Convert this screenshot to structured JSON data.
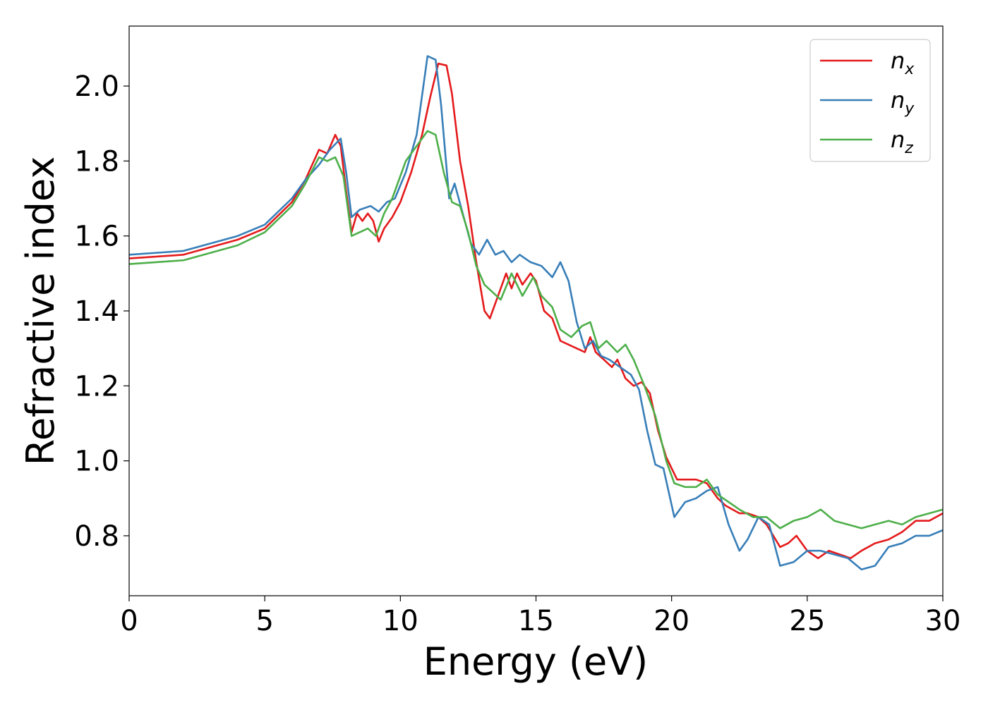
{
  "chart_data": {
    "type": "line",
    "title": "",
    "xlabel": "Energy (eV)",
    "ylabel": "Refractive index",
    "xlim": [
      0,
      30
    ],
    "ylim": [
      0.64,
      2.16
    ],
    "xticks": [
      0,
      5,
      10,
      15,
      20,
      25,
      30
    ],
    "xtick_labels": [
      "0",
      "5",
      "10",
      "15",
      "20",
      "25",
      "30"
    ],
    "yticks": [
      0.8,
      1.0,
      1.2,
      1.4,
      1.6,
      1.8,
      2.0
    ],
    "ytick_labels": [
      "0.8",
      "1.0",
      "1.2",
      "1.4",
      "1.6",
      "1.8",
      "2.0"
    ],
    "grid": false,
    "legend_position": "top-right",
    "series": [
      {
        "name": "n",
        "subscript": "x",
        "color": "#e41a1c",
        "points": [
          [
            0,
            1.54
          ],
          [
            2,
            1.55
          ],
          [
            4,
            1.59
          ],
          [
            5,
            1.62
          ],
          [
            6,
            1.69
          ],
          [
            6.5,
            1.75
          ],
          [
            7,
            1.83
          ],
          [
            7.3,
            1.82
          ],
          [
            7.6,
            1.87
          ],
          [
            7.8,
            1.84
          ],
          [
            8,
            1.72
          ],
          [
            8.2,
            1.61
          ],
          [
            8.4,
            1.66
          ],
          [
            8.6,
            1.64
          ],
          [
            8.8,
            1.66
          ],
          [
            9,
            1.64
          ],
          [
            9.2,
            1.585
          ],
          [
            9.4,
            1.62
          ],
          [
            9.7,
            1.65
          ],
          [
            10,
            1.69
          ],
          [
            10.4,
            1.77
          ],
          [
            10.8,
            1.87
          ],
          [
            11.1,
            1.97
          ],
          [
            11.4,
            2.06
          ],
          [
            11.7,
            2.055
          ],
          [
            11.9,
            1.98
          ],
          [
            12.2,
            1.8
          ],
          [
            12.5,
            1.68
          ],
          [
            12.8,
            1.53
          ],
          [
            13.1,
            1.4
          ],
          [
            13.3,
            1.38
          ],
          [
            13.6,
            1.44
          ],
          [
            13.9,
            1.5
          ],
          [
            14.1,
            1.46
          ],
          [
            14.3,
            1.5
          ],
          [
            14.5,
            1.47
          ],
          [
            14.8,
            1.5
          ],
          [
            15,
            1.48
          ],
          [
            15.3,
            1.4
          ],
          [
            15.6,
            1.38
          ],
          [
            15.9,
            1.32
          ],
          [
            16.2,
            1.31
          ],
          [
            16.5,
            1.3
          ],
          [
            16.8,
            1.29
          ],
          [
            17,
            1.33
          ],
          [
            17.2,
            1.29
          ],
          [
            17.5,
            1.27
          ],
          [
            17.8,
            1.25
          ],
          [
            18,
            1.27
          ],
          [
            18.3,
            1.22
          ],
          [
            18.6,
            1.2
          ],
          [
            18.9,
            1.21
          ],
          [
            19.2,
            1.18
          ],
          [
            19.5,
            1.08
          ],
          [
            19.8,
            1.01
          ],
          [
            20.2,
            0.95
          ],
          [
            20.5,
            0.95
          ],
          [
            20.9,
            0.95
          ],
          [
            21.3,
            0.94
          ],
          [
            21.7,
            0.9
          ],
          [
            22,
            0.88
          ],
          [
            22.5,
            0.86
          ],
          [
            22.8,
            0.86
          ],
          [
            23.2,
            0.85
          ],
          [
            23.5,
            0.83
          ],
          [
            24,
            0.77
          ],
          [
            24.3,
            0.78
          ],
          [
            24.6,
            0.8
          ],
          [
            25,
            0.76
          ],
          [
            25.4,
            0.74
          ],
          [
            25.8,
            0.76
          ],
          [
            26.2,
            0.75
          ],
          [
            26.6,
            0.74
          ],
          [
            27,
            0.76
          ],
          [
            27.5,
            0.78
          ],
          [
            28,
            0.79
          ],
          [
            28.5,
            0.81
          ],
          [
            29,
            0.84
          ],
          [
            29.5,
            0.84
          ],
          [
            30,
            0.86
          ]
        ]
      },
      {
        "name": "n",
        "subscript": "y",
        "color": "#377eb8",
        "points": [
          [
            0,
            1.55
          ],
          [
            2,
            1.56
          ],
          [
            4,
            1.6
          ],
          [
            5,
            1.63
          ],
          [
            6,
            1.7
          ],
          [
            6.5,
            1.75
          ],
          [
            7,
            1.79
          ],
          [
            7.4,
            1.83
          ],
          [
            7.8,
            1.86
          ],
          [
            8,
            1.77
          ],
          [
            8.2,
            1.65
          ],
          [
            8.5,
            1.67
          ],
          [
            8.9,
            1.68
          ],
          [
            9.2,
            1.665
          ],
          [
            9.5,
            1.69
          ],
          [
            9.8,
            1.7
          ],
          [
            10.2,
            1.77
          ],
          [
            10.6,
            1.87
          ],
          [
            11,
            2.08
          ],
          [
            11.3,
            2.07
          ],
          [
            11.5,
            1.95
          ],
          [
            11.8,
            1.7
          ],
          [
            12,
            1.74
          ],
          [
            12.3,
            1.66
          ],
          [
            12.6,
            1.58
          ],
          [
            12.9,
            1.55
          ],
          [
            13.2,
            1.59
          ],
          [
            13.5,
            1.55
          ],
          [
            13.8,
            1.56
          ],
          [
            14.1,
            1.53
          ],
          [
            14.4,
            1.55
          ],
          [
            14.8,
            1.53
          ],
          [
            15.2,
            1.52
          ],
          [
            15.6,
            1.49
          ],
          [
            15.9,
            1.53
          ],
          [
            16.2,
            1.48
          ],
          [
            16.5,
            1.37
          ],
          [
            16.8,
            1.3
          ],
          [
            17.1,
            1.32
          ],
          [
            17.4,
            1.28
          ],
          [
            17.7,
            1.27
          ],
          [
            18.1,
            1.25
          ],
          [
            18.5,
            1.23
          ],
          [
            18.8,
            1.19
          ],
          [
            19.1,
            1.08
          ],
          [
            19.4,
            0.99
          ],
          [
            19.7,
            0.98
          ],
          [
            20.1,
            0.85
          ],
          [
            20.5,
            0.89
          ],
          [
            20.9,
            0.9
          ],
          [
            21.3,
            0.92
          ],
          [
            21.7,
            0.93
          ],
          [
            22.1,
            0.83
          ],
          [
            22.5,
            0.76
          ],
          [
            22.8,
            0.79
          ],
          [
            23.2,
            0.85
          ],
          [
            23.6,
            0.83
          ],
          [
            24,
            0.72
          ],
          [
            24.5,
            0.73
          ],
          [
            25,
            0.76
          ],
          [
            25.5,
            0.76
          ],
          [
            26,
            0.75
          ],
          [
            26.5,
            0.74
          ],
          [
            27,
            0.71
          ],
          [
            27.5,
            0.72
          ],
          [
            28,
            0.77
          ],
          [
            28.5,
            0.78
          ],
          [
            29,
            0.8
          ],
          [
            29.5,
            0.8
          ],
          [
            30,
            0.815
          ]
        ]
      },
      {
        "name": "n",
        "subscript": "z",
        "color": "#4daf4a",
        "points": [
          [
            0,
            1.525
          ],
          [
            2,
            1.535
          ],
          [
            4,
            1.575
          ],
          [
            5,
            1.61
          ],
          [
            6,
            1.68
          ],
          [
            6.5,
            1.74
          ],
          [
            7,
            1.81
          ],
          [
            7.3,
            1.8
          ],
          [
            7.6,
            1.81
          ],
          [
            7.9,
            1.76
          ],
          [
            8.2,
            1.6
          ],
          [
            8.5,
            1.61
          ],
          [
            8.8,
            1.62
          ],
          [
            9.1,
            1.6
          ],
          [
            9.4,
            1.66
          ],
          [
            9.7,
            1.7
          ],
          [
            10.2,
            1.8
          ],
          [
            10.6,
            1.84
          ],
          [
            11,
            1.88
          ],
          [
            11.3,
            1.87
          ],
          [
            11.6,
            1.77
          ],
          [
            11.9,
            1.69
          ],
          [
            12.2,
            1.68
          ],
          [
            12.5,
            1.61
          ],
          [
            12.8,
            1.52
          ],
          [
            13.1,
            1.47
          ],
          [
            13.4,
            1.45
          ],
          [
            13.7,
            1.43
          ],
          [
            14.1,
            1.5
          ],
          [
            14.5,
            1.44
          ],
          [
            14.9,
            1.49
          ],
          [
            15.2,
            1.44
          ],
          [
            15.6,
            1.41
          ],
          [
            15.9,
            1.35
          ],
          [
            16.3,
            1.33
          ],
          [
            16.7,
            1.36
          ],
          [
            17,
            1.37
          ],
          [
            17.3,
            1.3
          ],
          [
            17.6,
            1.32
          ],
          [
            18,
            1.29
          ],
          [
            18.3,
            1.31
          ],
          [
            18.6,
            1.27
          ],
          [
            19,
            1.2
          ],
          [
            19.4,
            1.12
          ],
          [
            19.8,
            1.0
          ],
          [
            20.1,
            0.94
          ],
          [
            20.5,
            0.93
          ],
          [
            20.9,
            0.93
          ],
          [
            21.3,
            0.95
          ],
          [
            21.7,
            0.91
          ],
          [
            22.1,
            0.89
          ],
          [
            22.5,
            0.87
          ],
          [
            23,
            0.85
          ],
          [
            23.5,
            0.85
          ],
          [
            24,
            0.82
          ],
          [
            24.5,
            0.84
          ],
          [
            25,
            0.85
          ],
          [
            25.5,
            0.87
          ],
          [
            26,
            0.84
          ],
          [
            26.5,
            0.83
          ],
          [
            27,
            0.82
          ],
          [
            27.5,
            0.83
          ],
          [
            28,
            0.84
          ],
          [
            28.5,
            0.83
          ],
          [
            29,
            0.85
          ],
          [
            29.5,
            0.86
          ],
          [
            30,
            0.87
          ]
        ]
      }
    ]
  }
}
